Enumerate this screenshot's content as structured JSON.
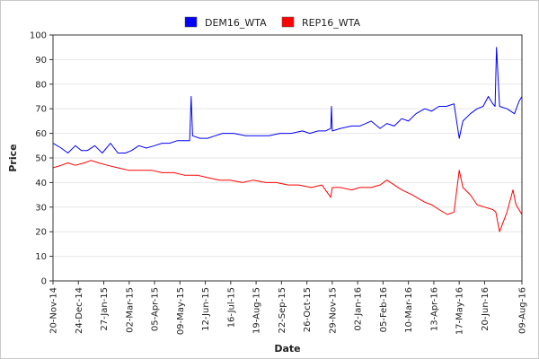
{
  "chart_data": {
    "type": "line",
    "title": "",
    "xlabel": "Date",
    "ylabel": "Price",
    "ylim": [
      0,
      100
    ],
    "xlim": [
      "2014-11-20",
      "2016-08-09"
    ],
    "yticks": [
      0,
      10,
      20,
      30,
      40,
      50,
      60,
      70,
      80,
      90,
      100
    ],
    "xticks": [
      "20-Nov-14",
      "24-Dec-14",
      "27-Jan-15",
      "02-Mar-15",
      "05-Apr-15",
      "09-May-15",
      "12-Jun-15",
      "16-Jul-15",
      "19-Aug-15",
      "22-Sep-15",
      "26-Oct-15",
      "29-Nov-15",
      "02-Jan-16",
      "05-Feb-16",
      "10-Mar-16",
      "13-Apr-16",
      "17-May-16",
      "20-Jun-16",
      "09-Aug-16"
    ],
    "grid": "horizontal",
    "legend": "top-center",
    "series": [
      {
        "name": "DEM16_WTA",
        "color": "#0000ff",
        "x": [
          "2014-11-20",
          "2014-12-01",
          "2014-12-10",
          "2014-12-20",
          "2014-12-28",
          "2015-01-05",
          "2015-01-15",
          "2015-01-25",
          "2015-02-05",
          "2015-02-15",
          "2015-02-25",
          "2015-03-05",
          "2015-03-15",
          "2015-03-25",
          "2015-04-05",
          "2015-04-15",
          "2015-04-25",
          "2015-05-05",
          "2015-05-15",
          "2015-05-22",
          "2015-05-24",
          "2015-05-26",
          "2015-06-05",
          "2015-06-15",
          "2015-06-25",
          "2015-07-05",
          "2015-07-20",
          "2015-08-05",
          "2015-08-20",
          "2015-09-05",
          "2015-09-20",
          "2015-10-05",
          "2015-10-20",
          "2015-10-30",
          "2015-11-10",
          "2015-11-20",
          "2015-11-27",
          "2015-11-28",
          "2015-11-29",
          "2015-12-10",
          "2015-12-25",
          "2016-01-05",
          "2016-01-20",
          "2016-02-01",
          "2016-02-10",
          "2016-02-20",
          "2016-03-01",
          "2016-03-10",
          "2016-03-20",
          "2016-04-01",
          "2016-04-10",
          "2016-04-20",
          "2016-04-30",
          "2016-05-10",
          "2016-05-17",
          "2016-05-22",
          "2016-06-01",
          "2016-06-10",
          "2016-06-18",
          "2016-06-25",
          "2016-07-01",
          "2016-07-04",
          "2016-07-06",
          "2016-07-10",
          "2016-07-20",
          "2016-07-30",
          "2016-08-05",
          "2016-08-09"
        ],
        "values": [
          56,
          54,
          52,
          55,
          53,
          53,
          55,
          52,
          56,
          52,
          52,
          53,
          55,
          54,
          55,
          56,
          56,
          57,
          57,
          57,
          75,
          59,
          58,
          58,
          59,
          60,
          60,
          59,
          59,
          59,
          60,
          60,
          61,
          60,
          61,
          61,
          62,
          71,
          61,
          62,
          63,
          63,
          65,
          62,
          64,
          63,
          66,
          65,
          68,
          70,
          69,
          71,
          71,
          72,
          58,
          65,
          68,
          70,
          71,
          75,
          72,
          71,
          95,
          71,
          70,
          68,
          73,
          75
        ]
      },
      {
        "name": "REP16_WTA",
        "color": "#ff0000",
        "x": [
          "2014-11-20",
          "2014-12-01",
          "2014-12-10",
          "2014-12-20",
          "2015-01-01",
          "2015-01-10",
          "2015-01-20",
          "2015-02-01",
          "2015-02-15",
          "2015-03-01",
          "2015-03-15",
          "2015-04-01",
          "2015-04-15",
          "2015-05-01",
          "2015-05-15",
          "2015-06-01",
          "2015-06-15",
          "2015-07-01",
          "2015-07-15",
          "2015-08-01",
          "2015-08-15",
          "2015-09-01",
          "2015-09-15",
          "2015-10-01",
          "2015-10-15",
          "2015-11-01",
          "2015-11-15",
          "2015-11-27",
          "2015-11-29",
          "2015-12-10",
          "2015-12-25",
          "2016-01-05",
          "2016-01-20",
          "2016-02-01",
          "2016-02-10",
          "2016-02-20",
          "2016-03-01",
          "2016-03-15",
          "2016-04-01",
          "2016-04-10",
          "2016-04-20",
          "2016-05-01",
          "2016-05-10",
          "2016-05-17",
          "2016-05-22",
          "2016-06-01",
          "2016-06-10",
          "2016-06-20",
          "2016-07-01",
          "2016-07-05",
          "2016-07-10",
          "2016-07-20",
          "2016-07-28",
          "2016-08-01",
          "2016-08-09"
        ],
        "values": [
          46,
          47,
          48,
          47,
          48,
          49,
          48,
          47,
          46,
          45,
          45,
          45,
          44,
          44,
          43,
          43,
          42,
          41,
          41,
          40,
          41,
          40,
          40,
          39,
          39,
          38,
          39,
          34,
          38,
          38,
          37,
          38,
          38,
          39,
          41,
          39,
          37,
          35,
          32,
          31,
          29,
          27,
          28,
          45,
          38,
          35,
          31,
          30,
          29,
          28,
          20,
          28,
          37,
          31,
          27
        ]
      }
    ]
  }
}
